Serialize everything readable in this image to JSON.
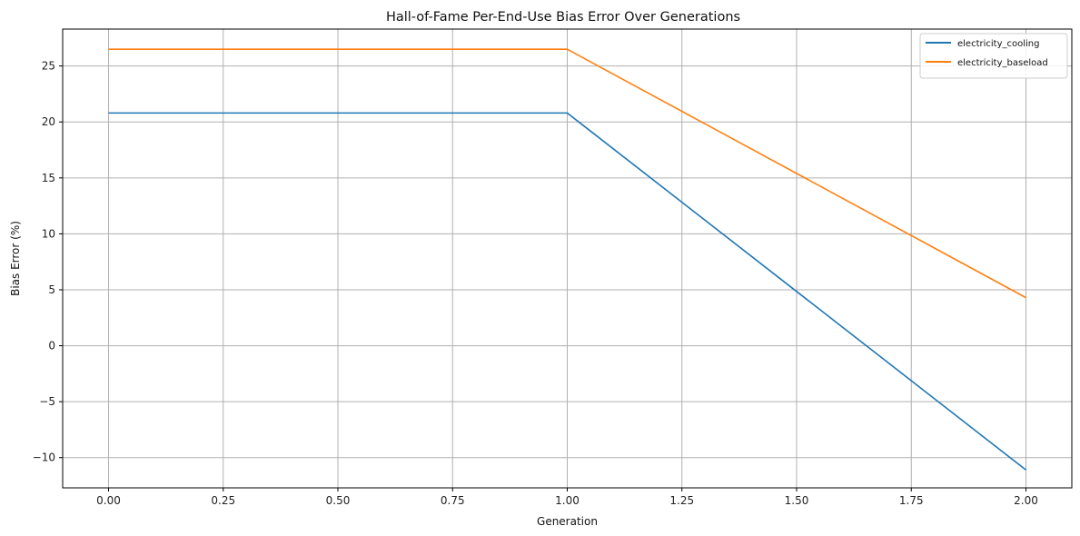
{
  "chart_data": {
    "type": "line",
    "title": "Hall-of-Fame Per-End-Use Bias Error Over Generations",
    "xlabel": "Generation",
    "ylabel": "Bias Error (%)",
    "x": [
      0,
      1,
      2
    ],
    "xlim": [
      -0.1,
      2.1
    ],
    "ylim": [
      -12.7,
      28.3
    ],
    "x_ticks": [
      0,
      0.25,
      0.5,
      0.75,
      1,
      1.25,
      1.5,
      1.75,
      2
    ],
    "x_tick_labels": [
      "0.00",
      "0.25",
      "0.50",
      "0.75",
      "1.00",
      "1.25",
      "1.50",
      "1.75",
      "2.00"
    ],
    "y_ticks": [
      -10,
      -5,
      0,
      5,
      10,
      15,
      20,
      25
    ],
    "y_tick_labels": [
      "−10",
      "−5",
      "0",
      "5",
      "10",
      "15",
      "20",
      "25"
    ],
    "grid": true,
    "legend_position": "top-right",
    "series": [
      {
        "name": "electricity_cooling",
        "color": "#1f77b4",
        "values": [
          20.8,
          20.8,
          -11.1
        ]
      },
      {
        "name": "electricity_baseload",
        "color": "#ff7f0e",
        "values": [
          26.5,
          26.5,
          4.3
        ]
      }
    ]
  }
}
